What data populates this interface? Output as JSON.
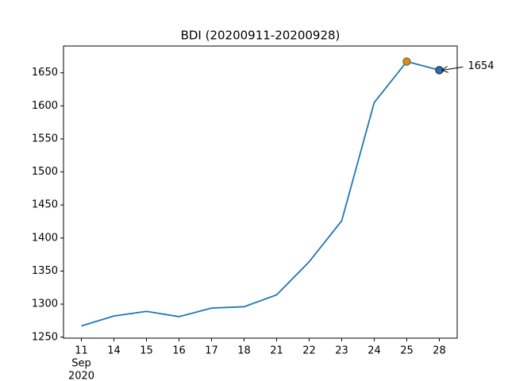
{
  "chart_data": {
    "type": "line",
    "title": "BDI (20200911-20200928)",
    "categories": [
      "11",
      "14",
      "15",
      "16",
      "17",
      "18",
      "21",
      "22",
      "23",
      "24",
      "25",
      "28"
    ],
    "x_sublabels": [
      "Sep",
      "2020"
    ],
    "values": [
      1267,
      1282,
      1289,
      1281,
      1294,
      1296,
      1314,
      1364,
      1426,
      1605,
      1667,
      1654
    ],
    "color": "#1f77b4",
    "ylim": [
      1248.5,
      1690.5
    ],
    "yticks": [
      1250,
      1300,
      1350,
      1400,
      1450,
      1500,
      1550,
      1600,
      1650
    ],
    "max_marker": {
      "fill": "#ff7f0e",
      "edge": "#4c8c3a"
    },
    "last_marker": {
      "fill": "#1f77b4",
      "edge": "#2a3f4f"
    }
  }
}
